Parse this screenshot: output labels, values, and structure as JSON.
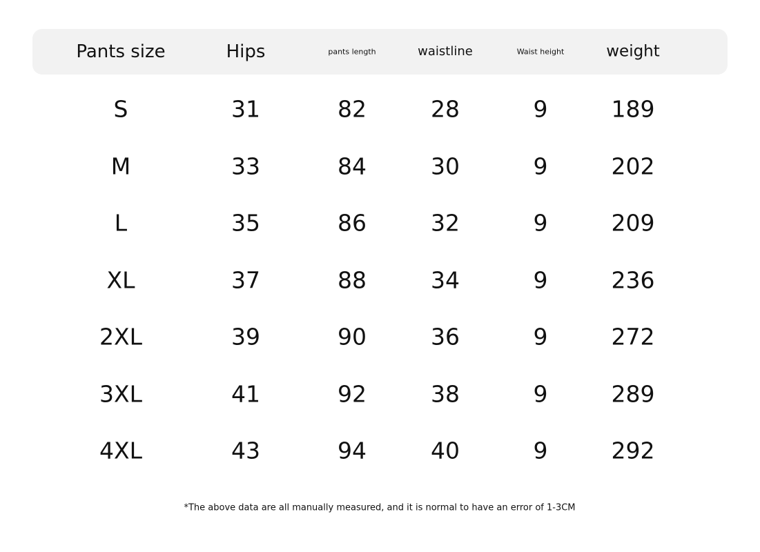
{
  "table": {
    "headers": [
      "Pants size",
      "Hips",
      "pants length",
      "waistline",
      "Waist height",
      "weight"
    ],
    "rows": [
      [
        "S",
        31,
        82,
        28,
        9,
        189
      ],
      [
        "M",
        33,
        84,
        30,
        9,
        202
      ],
      [
        "L",
        35,
        86,
        32,
        9,
        209
      ],
      [
        "XL",
        37,
        88,
        34,
        9,
        236
      ],
      [
        "2XL",
        39,
        90,
        36,
        9,
        272
      ],
      [
        "3XL",
        41,
        92,
        38,
        9,
        289
      ],
      [
        "4XL",
        43,
        94,
        40,
        9,
        292
      ]
    ]
  },
  "note": "*The above data are all manually measured, and it is normal to have an error of 1-3CM"
}
